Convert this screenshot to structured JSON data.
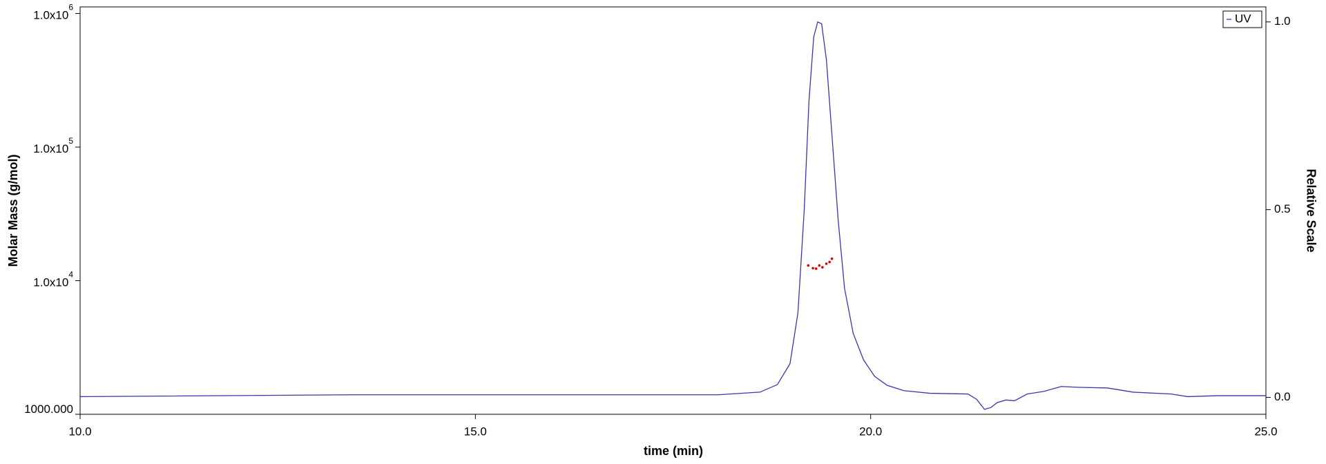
{
  "chart_data": {
    "type": "line",
    "x_label": "time (min)",
    "y_label": "Molar Mass (g/mol)",
    "y2_label": "Relative Scale",
    "xlim": [
      10,
      25
    ],
    "xticks": [
      {
        "value": 10,
        "label": "10.0"
      },
      {
        "value": 15,
        "label": "15.0"
      },
      {
        "value": 20,
        "label": "20.0"
      },
      {
        "value": 25,
        "label": "25.0"
      }
    ],
    "log_y": true,
    "ylim": [
      1000,
      1120000
    ],
    "yticks": [
      {
        "value": 1000,
        "label": "1000.000"
      },
      {
        "value": 10000,
        "label": "1.0x10",
        "sup": "4"
      },
      {
        "value": 100000,
        "label": "1.0x10",
        "sup": "5"
      },
      {
        "value": 1000000,
        "label": "1.0x10",
        "sup": "6"
      }
    ],
    "y2lim": [
      -0.045,
      1.04
    ],
    "y2ticks": [
      {
        "value": 0,
        "label": "0.0"
      },
      {
        "value": 0.5,
        "label": "0.5"
      },
      {
        "value": 1,
        "label": "1.0"
      }
    ],
    "legend": "upper right",
    "series": [
      {
        "name": "UV",
        "color": "#3535b0",
        "axis": "y2",
        "style": "line",
        "x": [
          10,
          13.5,
          18.07,
          18.6,
          18.82,
          18.98,
          19.08,
          19.16,
          19.22,
          19.28,
          19.33,
          19.38,
          19.44,
          19.51,
          19.59,
          19.67,
          19.78,
          19.91,
          20.05,
          20.21,
          20.42,
          20.75,
          21.23,
          21.34,
          21.44,
          21.52,
          21.6,
          21.71,
          21.82,
          21.98,
          22.19,
          22.41,
          22.62,
          23.0,
          23.32,
          23.8,
          24.01,
          24.39,
          25
        ],
        "values": [
          0.002,
          0.007,
          0.007,
          0.014,
          0.034,
          0.09,
          0.225,
          0.5,
          0.79,
          0.96,
          1.0,
          0.995,
          0.9,
          0.7,
          0.47,
          0.29,
          0.17,
          0.1,
          0.056,
          0.032,
          0.018,
          0.011,
          0.009,
          -0.005,
          -0.032,
          -0.027,
          -0.014,
          -0.007,
          -0.009,
          0.009,
          0.016,
          0.029,
          0.027,
          0.025,
          0.014,
          0.009,
          0.002,
          0.0045,
          0.0045
        ]
      },
      {
        "color": "#e00000",
        "axis": "y",
        "style": "dots",
        "x": [
          19.21,
          19.27,
          19.31,
          19.35,
          19.39,
          19.44,
          19.48,
          19.51
        ],
        "values": [
          13000,
          12400,
          12300,
          13000,
          12600,
          13400,
          13800,
          14600
        ]
      }
    ]
  }
}
